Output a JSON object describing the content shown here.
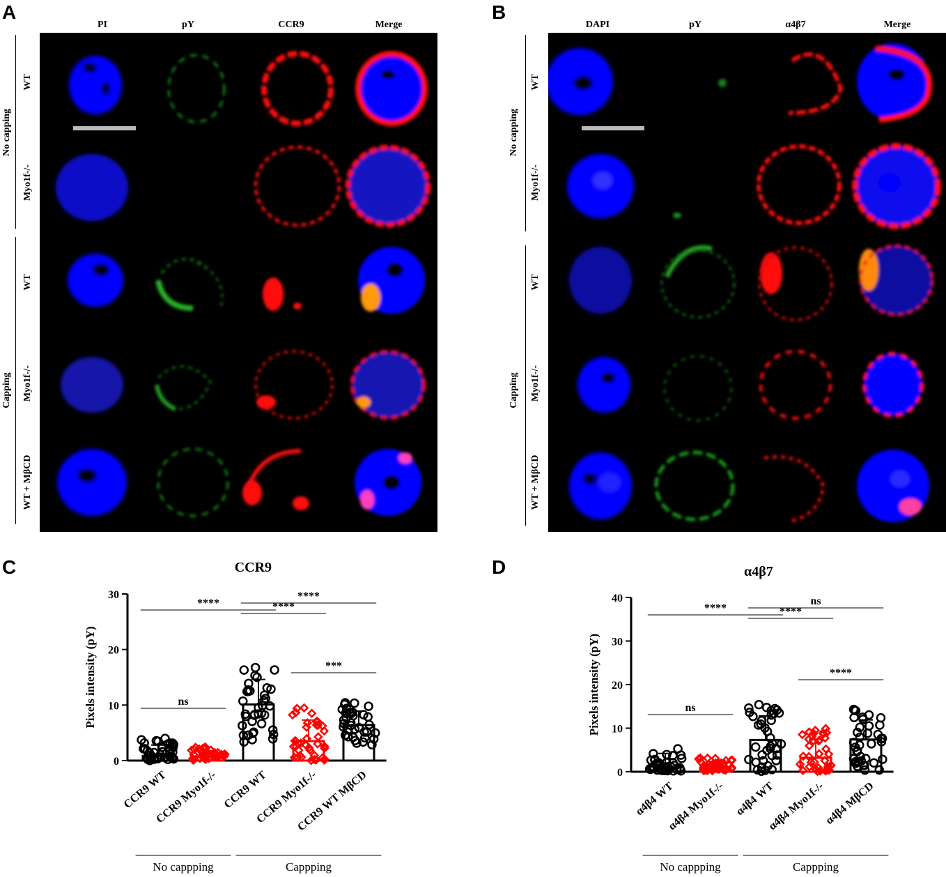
{
  "panels": {
    "a": {
      "letter": "A",
      "columns": [
        "PI",
        "pY",
        "CCR9",
        "Merge"
      ],
      "rows": [
        "WT",
        "Myo1f-/-",
        "WT",
        "Myo1f-/-",
        "WT + MβCD"
      ],
      "groups": [
        "No capping",
        "Capping"
      ]
    },
    "b": {
      "letter": "B",
      "columns": [
        "DAPI",
        "pY",
        "α4β7",
        "Merge"
      ],
      "rows": [
        "WT",
        "Myo1f-/-",
        "WT",
        "Myo1f-/-",
        "WT + MβCD"
      ],
      "groups": [
        "No capping",
        "Capping"
      ]
    },
    "c": {
      "letter": "C"
    },
    "d": {
      "letter": "D"
    }
  },
  "colors": {
    "dapi": "#0000ff",
    "py": "#1aa31a",
    "receptor": "#ff1010",
    "bar_black": "#000000",
    "bar_red": "#ff0000"
  },
  "chart_data": [
    {
      "type": "bar",
      "title": "CCR9",
      "ylabel": "Pixels intensity (pY)",
      "ylim": [
        0,
        30
      ],
      "yticks": [
        0,
        10,
        20,
        30
      ],
      "categories": [
        "CCR9 WT",
        "CCR9 Myo1f-/-",
        "CCR9 WT",
        "CCR9 Myo1f-/-",
        "CCR9 WT MβCD"
      ],
      "values": [
        0.8,
        0.6,
        10.1,
        3.5,
        6.4
      ],
      "errors": [
        2.0,
        1.2,
        4.5,
        3.8,
        2.5
      ],
      "bar_colors": [
        "black",
        "red",
        "black",
        "red",
        "black"
      ],
      "comparisons": [
        {
          "from": 0,
          "to": 1,
          "label": "ns"
        },
        {
          "from": 0,
          "to": 2,
          "label": "****"
        },
        {
          "from": 2,
          "to": 3,
          "label": "****"
        },
        {
          "from": 2,
          "to": 4,
          "label": "****"
        },
        {
          "from": 3,
          "to": 4,
          "label": "***"
        }
      ],
      "groups": [
        {
          "label": "No cappping",
          "categories": [
            0,
            1
          ]
        },
        {
          "label": "Cappping",
          "categories": [
            2,
            3,
            4
          ]
        }
      ]
    },
    {
      "type": "bar",
      "title": "α4β7",
      "ylabel": "Pixels intensity (pY)",
      "ylim": [
        0,
        40
      ],
      "yticks": [
        0,
        10,
        20,
        30,
        40
      ],
      "categories": [
        "α4β4 WT",
        "α4β4 Myo1f-/-",
        "α4β4 WT",
        "α4β4 Myo1f-/-",
        "α4β4 MβCD"
      ],
      "values": [
        1.2,
        0.8,
        7.3,
        3.2,
        7.4
      ],
      "errors": [
        3.0,
        1.5,
        5.5,
        4.2,
        4.5
      ],
      "bar_colors": [
        "black",
        "red",
        "black",
        "red",
        "black"
      ],
      "comparisons": [
        {
          "from": 0,
          "to": 1,
          "label": "ns"
        },
        {
          "from": 0,
          "to": 2,
          "label": "****"
        },
        {
          "from": 2,
          "to": 3,
          "label": "****"
        },
        {
          "from": 2,
          "to": 4,
          "label": "ns"
        },
        {
          "from": 3,
          "to": 4,
          "label": "****"
        }
      ],
      "groups": [
        {
          "label": "No cappping",
          "categories": [
            0,
            1
          ]
        },
        {
          "label": "Cappping",
          "categories": [
            2,
            3,
            4
          ]
        }
      ]
    }
  ]
}
